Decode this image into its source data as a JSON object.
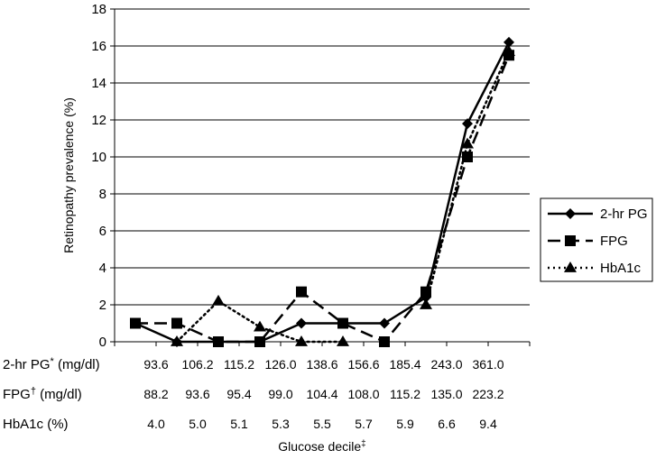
{
  "chart_data": {
    "type": "line",
    "title": "",
    "ylabel": "Retinopathy prevalence (%)",
    "xlabel": "Glucose decile",
    "xlabel_mark": "‡",
    "ylim": [
      0,
      18
    ],
    "yticks": [
      0,
      2,
      4,
      6,
      8,
      10,
      12,
      14,
      16,
      18
    ],
    "grid": "horizontal",
    "legend_position": "right",
    "deciles": [
      1,
      2,
      3,
      4,
      5,
      6,
      7,
      8,
      9,
      10
    ],
    "series": [
      {
        "name": "2-hr PG",
        "marker": "diamond",
        "dash": "solid",
        "values": [
          1.0,
          0.0,
          0.0,
          0.0,
          1.0,
          1.0,
          1.0,
          2.4,
          11.8,
          16.2
        ]
      },
      {
        "name": "FPG",
        "marker": "square",
        "dash": "dashed",
        "values": [
          1.0,
          1.0,
          0.0,
          0.0,
          2.7,
          1.0,
          0.0,
          2.7,
          10.0,
          15.5
        ]
      },
      {
        "name": "HbA1c",
        "marker": "triangle",
        "dash": "dotted",
        "values": [
          null,
          0.0,
          2.2,
          0.8,
          0.0,
          0.0,
          null,
          2.0,
          10.7,
          15.7
        ]
      }
    ],
    "cutpoint_rows": [
      {
        "label": "2-hr PG",
        "mark": "*",
        "unit": "(mg/dl)",
        "values": [
          "93.6",
          "106.2",
          "115.2",
          "126.0",
          "138.6",
          "156.6",
          "185.4",
          "243.0",
          "361.0"
        ]
      },
      {
        "label": "FPG",
        "mark": "†",
        "unit": "(mg/dl)",
        "values": [
          "88.2",
          "93.6",
          "95.4",
          "99.0",
          "104.4",
          "108.0",
          "115.2",
          "135.0",
          "223.2"
        ]
      },
      {
        "label": "HbA1c",
        "mark": "",
        "unit": "(%)",
        "values": [
          "4.0",
          "5.0",
          "5.1",
          "5.3",
          "5.5",
          "5.7",
          "5.9",
          "6.6",
          "9.4"
        ]
      }
    ]
  }
}
